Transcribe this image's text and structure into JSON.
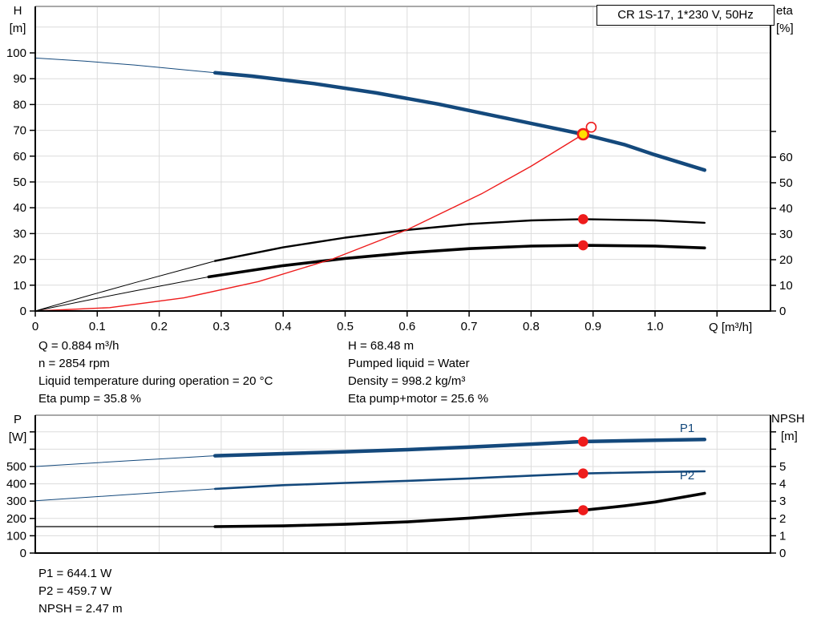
{
  "title_box": {
    "label": "CR 1S-17, 1*230 V, 50Hz"
  },
  "colors": {
    "curve_blue": "#14497c",
    "curve_black": "#000000",
    "curve_red": "#ee1c1c",
    "duty_yellow": "#ffdf00",
    "grid": "#dcdcdc",
    "frame": "#a8a8a8",
    "axis": "#000000",
    "label_blue": "#14497c"
  },
  "labels": {
    "h": "H",
    "h_unit": "[m]",
    "eta": "eta",
    "eta_unit": "[%]",
    "q": "Q [m³/h]",
    "p": "P",
    "p_unit": "[W]",
    "npsh": "NPSH",
    "npsh_unit": "[m]"
  },
  "info": {
    "left": [
      "Q = 0.884 m³/h",
      "n = 2854 rpm",
      "Liquid temperature during operation = 20 °C",
      "Eta pump = 35.8 %"
    ],
    "right": [
      "H = 68.48 m",
      "Pumped liquid = Water",
      "Density = 998.2 kg/m³",
      "Eta pump+motor = 25.6 %"
    ],
    "results": [
      "P1 = 644.1 W",
      "P2 = 459.7 W",
      "NPSH = 2.47 m"
    ]
  },
  "chart_data": [
    {
      "type": "line",
      "name": "head-efficiency-chart",
      "x_axis": {
        "label": "Q [m³/h]",
        "min": 0,
        "max": 1.19,
        "ticks": [
          {
            "v": 0,
            "label": "0"
          },
          {
            "v": 0.1,
            "label": "0.1"
          },
          {
            "v": 0.2,
            "label": "0.2"
          },
          {
            "v": 0.3,
            "label": "0.3"
          },
          {
            "v": 0.4,
            "label": "0.4"
          },
          {
            "v": 0.5,
            "label": "0.5"
          },
          {
            "v": 0.6,
            "label": "0.6"
          },
          {
            "v": 0.7,
            "label": "0.7"
          },
          {
            "v": 0.8,
            "label": "0.8"
          },
          {
            "v": 0.9,
            "label": "0.9"
          },
          {
            "v": 1.0,
            "label": "1.0"
          },
          {
            "v": 1.1,
            "label": null
          }
        ]
      },
      "x_grid": [
        0.1,
        0.2,
        0.3,
        0.4,
        0.5,
        0.6,
        0.7,
        0.8,
        0.9,
        1.0,
        1.1
      ],
      "left_axis": {
        "label": "H",
        "unit": "[m]",
        "min": 0,
        "max": 118,
        "ticks": [
          {
            "v": 0,
            "label": "0"
          },
          {
            "v": 10,
            "label": "10"
          },
          {
            "v": 20,
            "label": "20"
          },
          {
            "v": 30,
            "label": "30"
          },
          {
            "v": 40,
            "label": "40"
          },
          {
            "v": 50,
            "label": "50"
          },
          {
            "v": 60,
            "label": "60"
          },
          {
            "v": 70,
            "label": "70"
          },
          {
            "v": 80,
            "label": "80"
          },
          {
            "v": 90,
            "label": "90"
          },
          {
            "v": 100,
            "label": "100"
          }
        ]
      },
      "right_axis": {
        "label": "eta",
        "unit": "[%]",
        "min": 0,
        "max": 118,
        "ticks": [
          {
            "v": 0,
            "label": "0"
          },
          {
            "v": 10,
            "label": "10"
          },
          {
            "v": 20,
            "label": "20"
          },
          {
            "v": 30,
            "label": "30"
          },
          {
            "v": 40,
            "label": "40"
          },
          {
            "v": 50,
            "label": "50"
          },
          {
            "v": 60,
            "label": "60"
          },
          {
            "v": 70,
            "label": null
          }
        ]
      },
      "grid_rows": [
        10,
        20,
        30,
        40,
        50,
        60,
        70,
        80,
        90,
        100,
        110
      ],
      "series": [
        {
          "name": "head-curve-extension",
          "axis": "H",
          "color": "curve_blue",
          "width": 1,
          "points": [
            [
              0,
              98
            ],
            [
              0.08,
              96.8
            ],
            [
              0.16,
              95.3
            ],
            [
              0.29,
              92.3
            ]
          ]
        },
        {
          "name": "head-curve",
          "axis": "H",
          "color": "curve_blue",
          "width": 4.5,
          "points": [
            [
              0.29,
              92.3
            ],
            [
              0.35,
              91.0
            ],
            [
              0.45,
              88.1
            ],
            [
              0.55,
              84.5
            ],
            [
              0.65,
              80.2
            ],
            [
              0.75,
              75.2
            ],
            [
              0.884,
              68.48
            ],
            [
              0.95,
              64.5
            ],
            [
              1.0,
              60.5
            ],
            [
              1.08,
              54.6
            ]
          ]
        },
        {
          "name": "eta-pump-curve-extension",
          "axis": "eta",
          "color": "curve_black",
          "width": 1,
          "points": [
            [
              0,
              0
            ],
            [
              0.08,
              5.6
            ],
            [
              0.16,
              11.0
            ],
            [
              0.29,
              19.5
            ]
          ]
        },
        {
          "name": "eta-pump-curve",
          "axis": "eta",
          "color": "curve_black",
          "width": 2.4,
          "points": [
            [
              0.29,
              19.5
            ],
            [
              0.4,
              24.8
            ],
            [
              0.5,
              28.6
            ],
            [
              0.6,
              31.6
            ],
            [
              0.7,
              33.9
            ],
            [
              0.8,
              35.3
            ],
            [
              0.884,
              35.8
            ],
            [
              1.0,
              35.3
            ],
            [
              1.08,
              34.4
            ]
          ]
        },
        {
          "name": "eta-pump-motor-curve-extension",
          "axis": "eta",
          "color": "curve_black",
          "width": 1,
          "points": [
            [
              0,
              0
            ],
            [
              0.08,
              4.0
            ],
            [
              0.16,
              7.8
            ],
            [
              0.28,
              13.3
            ]
          ]
        },
        {
          "name": "eta-pump-motor-curve",
          "axis": "eta",
          "color": "curve_black",
          "width": 3.6,
          "points": [
            [
              0.28,
              13.3
            ],
            [
              0.4,
              17.7
            ],
            [
              0.5,
              20.5
            ],
            [
              0.6,
              22.7
            ],
            [
              0.7,
              24.3
            ],
            [
              0.8,
              25.3
            ],
            [
              0.884,
              25.6
            ],
            [
              1.0,
              25.3
            ],
            [
              1.08,
              24.6
            ]
          ]
        },
        {
          "name": "system-curve",
          "axis": "H",
          "color": "curve_red",
          "width": 1.4,
          "points": [
            [
              0,
              0
            ],
            [
              0.12,
              1.3
            ],
            [
              0.24,
              5.1
            ],
            [
              0.36,
              11.4
            ],
            [
              0.48,
              20.2
            ],
            [
              0.6,
              31.5
            ],
            [
              0.72,
              45.4
            ],
            [
              0.8,
              56.1
            ],
            [
              0.884,
              68.48
            ]
          ]
        }
      ],
      "markers": [
        {
          "x": 0.884,
          "v": 68.48,
          "axis": "H",
          "style": "duty"
        },
        {
          "x": 0.897,
          "v": 71.2,
          "axis": "H",
          "style": "open"
        },
        {
          "x": 0.884,
          "v": 35.8,
          "axis": "eta",
          "style": "dot"
        },
        {
          "x": 0.884,
          "v": 25.6,
          "axis": "eta",
          "style": "dot"
        }
      ],
      "annotations": []
    },
    {
      "type": "line",
      "name": "power-npsh-chart",
      "x_axis": {
        "label": "",
        "min": 0,
        "max": 1.19,
        "ticks": []
      },
      "x_grid": [
        0.1,
        0.2,
        0.3,
        0.4,
        0.5,
        0.6,
        0.7,
        0.8,
        0.9,
        1.0,
        1.1
      ],
      "left_axis": {
        "label": "P",
        "unit": "[W]",
        "min": 0,
        "max": 790,
        "ticks": [
          {
            "v": 0,
            "label": "0"
          },
          {
            "v": 100,
            "label": "100"
          },
          {
            "v": 200,
            "label": "200"
          },
          {
            "v": 300,
            "label": "300"
          },
          {
            "v": 400,
            "label": "400"
          },
          {
            "v": 500,
            "label": "500"
          },
          {
            "v": 600,
            "label": null
          },
          {
            "v": 700,
            "label": null
          }
        ]
      },
      "right_axis": {
        "label": "NPSH",
        "unit": "[m]",
        "min": 0,
        "max": 7.9,
        "ticks": [
          {
            "v": 0,
            "label": "0"
          },
          {
            "v": 1,
            "label": "1"
          },
          {
            "v": 2,
            "label": "2"
          },
          {
            "v": 3,
            "label": "3"
          },
          {
            "v": 4,
            "label": "4"
          },
          {
            "v": 5,
            "label": "5"
          },
          {
            "v": 6,
            "label": null
          },
          {
            "v": 7,
            "label": null
          }
        ]
      },
      "grid_rows": [
        100,
        200,
        300,
        400,
        500,
        600,
        700
      ],
      "series": [
        {
          "name": "p1-curve-extension",
          "axis": "P",
          "color": "curve_blue",
          "width": 1,
          "points": [
            [
              0,
              500
            ],
            [
              0.15,
              533
            ],
            [
              0.29,
              562
            ]
          ]
        },
        {
          "name": "p1-curve",
          "axis": "P",
          "color": "curve_blue",
          "width": 4.5,
          "points": [
            [
              0.29,
              562
            ],
            [
              0.4,
              574
            ],
            [
              0.5,
              585
            ],
            [
              0.6,
              597
            ],
            [
              0.7,
              612
            ],
            [
              0.8,
              629
            ],
            [
              0.884,
              644.1
            ],
            [
              1.0,
              652
            ],
            [
              1.08,
              656
            ]
          ]
        },
        {
          "name": "p2-curve-extension",
          "axis": "P",
          "color": "curve_blue",
          "width": 1,
          "points": [
            [
              0,
              302
            ],
            [
              0.15,
              338
            ],
            [
              0.29,
              371
            ]
          ]
        },
        {
          "name": "p2-curve",
          "axis": "P",
          "color": "curve_blue",
          "width": 2.6,
          "points": [
            [
              0.29,
              371
            ],
            [
              0.4,
              392
            ],
            [
              0.5,
              405
            ],
            [
              0.6,
              417
            ],
            [
              0.7,
              431
            ],
            [
              0.8,
              447
            ],
            [
              0.884,
              459.7
            ],
            [
              1.0,
              468
            ],
            [
              1.08,
              472
            ]
          ]
        },
        {
          "name": "npsh-curve-extension",
          "axis": "NPSH",
          "color": "curve_black",
          "width": 1.2,
          "points": [
            [
              0,
              1.53
            ],
            [
              0.29,
              1.53
            ]
          ]
        },
        {
          "name": "npsh-curve",
          "axis": "NPSH",
          "color": "curve_black",
          "width": 3.6,
          "points": [
            [
              0.29,
              1.53
            ],
            [
              0.4,
              1.57
            ],
            [
              0.5,
              1.66
            ],
            [
              0.6,
              1.8
            ],
            [
              0.7,
              2.02
            ],
            [
              0.8,
              2.28
            ],
            [
              0.884,
              2.47
            ],
            [
              0.95,
              2.72
            ],
            [
              1.0,
              2.95
            ],
            [
              1.08,
              3.45
            ]
          ]
        }
      ],
      "markers": [
        {
          "x": 0.884,
          "v": 644.1,
          "axis": "P",
          "style": "dot"
        },
        {
          "x": 0.884,
          "v": 459.7,
          "axis": "P",
          "style": "dot"
        },
        {
          "x": 0.884,
          "v": 2.47,
          "axis": "NPSH",
          "style": "dot"
        }
      ],
      "annotations": [
        {
          "text": "P1",
          "x": 1.04,
          "v": 700,
          "axis": "P"
        },
        {
          "text": "P2",
          "x": 1.04,
          "v": 425,
          "axis": "P"
        }
      ]
    }
  ]
}
